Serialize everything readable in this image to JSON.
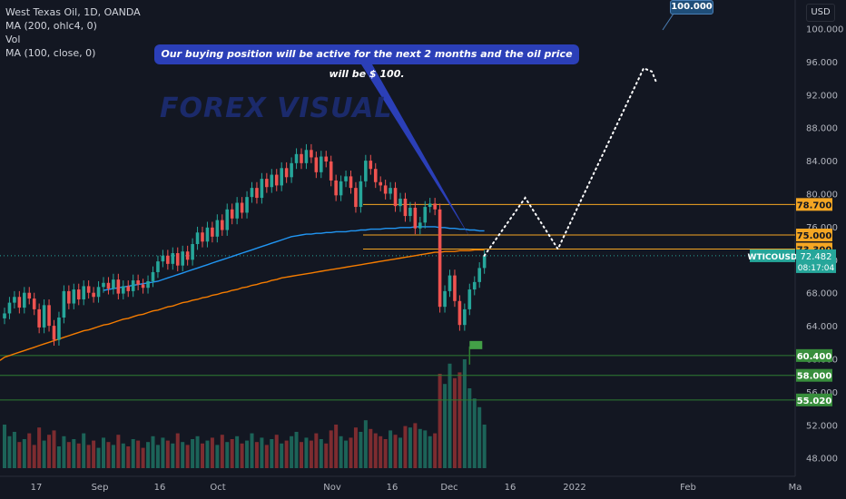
{
  "legend": {
    "title": "West Texas Oil, 1D, OANDA",
    "ma200": "MA (200, ohlc4, 0)",
    "vol": "Vol",
    "ma100": "MA (100, close, 0)"
  },
  "currency": "USD",
  "callout_text": "Our buying position will be active for the next 2 months and the oil price will be $ 100.",
  "target_label": "100.000",
  "watermark": "FOREX VISUAL",
  "colors": {
    "background": "#131722",
    "up": "#26a69a",
    "down": "#ef5350",
    "ma100": "#2196f3",
    "ma200": "#f57c00",
    "orange_level": "#f5a623",
    "green_level": "#2e7d32",
    "callout": "#2b3fb8"
  },
  "chart_data": {
    "type": "candlestick",
    "symbol": "WTICOUSD",
    "x_ticks": [
      "17",
      "Sep",
      "16",
      "Oct",
      "Nov",
      "16",
      "Dec",
      "16",
      "2022",
      "Feb",
      "Ma"
    ],
    "y_ticks": [
      "100.000",
      "96.000",
      "92.000",
      "88.000",
      "84.000",
      "80.000",
      "76.000",
      "72.000",
      "68.000",
      "64.000",
      "60.000",
      "56.000",
      "52.000",
      "48.000"
    ],
    "ylim": [
      44,
      102
    ],
    "current_price": "72.482",
    "countdown": "08:17:04",
    "levels": [
      {
        "label": "78.700",
        "value": 78.7,
        "color": "orange"
      },
      {
        "label": "75.000",
        "value": 75.0,
        "color": "orange"
      },
      {
        "label": "73.300",
        "value": 73.3,
        "color": "orange"
      },
      {
        "label": "60.400",
        "value": 60.4,
        "color": "green"
      },
      {
        "label": "58.000",
        "value": 58.0,
        "color": "green"
      },
      {
        "label": "55.020",
        "value": 55.02,
        "color": "green"
      }
    ],
    "closes": [
      65.5,
      66.8,
      67.5,
      66.2,
      68.0,
      67.3,
      66.0,
      63.8,
      66.5,
      64.0,
      62.3,
      65.0,
      68.2,
      66.7,
      68.4,
      67.2,
      68.8,
      68.0,
      67.5,
      68.7,
      69.2,
      68.5,
      69.6,
      67.9,
      68.8,
      68.2,
      69.5,
      69.0,
      68.6,
      69.4,
      70.5,
      71.8,
      72.5,
      71.5,
      72.8,
      71.3,
      73.0,
      72.0,
      73.9,
      75.3,
      74.2,
      75.9,
      74.8,
      76.8,
      75.6,
      78.1,
      77.0,
      78.9,
      77.7,
      79.6,
      80.7,
      79.5,
      81.8,
      80.8,
      82.3,
      81.0,
      83.1,
      82.0,
      83.7,
      84.8,
      83.7,
      85.3,
      84.4,
      82.6,
      84.5,
      83.9,
      81.6,
      79.8,
      81.5,
      82.1,
      80.7,
      78.4,
      81.5,
      84.0,
      83.0,
      81.4,
      81.0,
      80.0,
      80.7,
      78.5,
      79.4,
      77.3,
      78.3,
      75.8,
      76.5,
      78.4,
      78.8,
      78.1,
      66.3,
      68.2,
      70.1,
      67.0,
      64.1,
      66.0,
      68.4,
      69.3,
      71.0,
      72.48
    ],
    "ma200": [
      60.2,
      60.4,
      60.6,
      60.8,
      61.0,
      61.2,
      61.4,
      61.6,
      61.8,
      62.0,
      62.2,
      62.4,
      62.6,
      62.8,
      63.0,
      63.2,
      63.4,
      63.5,
      63.7,
      63.9,
      64.1,
      64.2,
      64.4,
      64.6,
      64.8,
      64.9,
      65.1,
      65.3,
      65.4,
      65.6,
      65.8,
      65.9,
      66.1,
      66.3,
      66.4,
      66.6,
      66.8,
      66.9,
      67.1,
      67.2,
      67.4,
      67.5,
      67.7,
      67.8,
      68.0,
      68.1,
      68.3,
      68.4,
      68.6,
      68.7,
      68.9,
      69.0,
      69.2,
      69.3,
      69.5,
      69.6,
      69.8,
      69.9,
      70.0,
      70.1,
      70.2,
      70.3,
      70.4,
      70.5,
      70.6,
      70.7,
      70.8,
      70.9,
      71.0,
      71.1,
      71.2,
      71.3,
      71.4,
      71.5,
      71.6,
      71.7,
      71.8,
      71.9,
      72.0,
      72.1,
      72.2,
      72.3,
      72.4,
      72.5,
      72.6,
      72.7,
      72.8,
      72.9,
      72.9,
      73.0,
      73.0,
      73.0,
      73.1,
      73.1,
      73.1,
      73.2,
      73.2,
      73.2
    ],
    "ma100": [
      null,
      null,
      null,
      null,
      null,
      null,
      null,
      null,
      null,
      null,
      null,
      null,
      null,
      null,
      null,
      null,
      null,
      null,
      null,
      null,
      68.3,
      68.4,
      68.5,
      68.6,
      68.7,
      68.8,
      68.9,
      69.0,
      69.1,
      69.2,
      69.3,
      69.4,
      69.6,
      69.8,
      70.0,
      70.2,
      70.4,
      70.6,
      70.8,
      71.0,
      71.2,
      71.4,
      71.6,
      71.8,
      72.0,
      72.2,
      72.4,
      72.6,
      72.8,
      73.0,
      73.2,
      73.4,
      73.6,
      73.8,
      74.0,
      74.2,
      74.4,
      74.6,
      74.8,
      74.9,
      75.0,
      75.1,
      75.1,
      75.2,
      75.2,
      75.3,
      75.3,
      75.4,
      75.4,
      75.4,
      75.5,
      75.5,
      75.6,
      75.6,
      75.7,
      75.7,
      75.7,
      75.8,
      75.8,
      75.8,
      75.9,
      75.9,
      75.9,
      76.0,
      76.0,
      76.0,
      76.0,
      76.0,
      75.9,
      75.9,
      75.8,
      75.8,
      75.7,
      75.7,
      75.6,
      75.6,
      75.5,
      75.5
    ],
    "volume": [
      0.3,
      0.22,
      0.25,
      0.18,
      0.2,
      0.24,
      0.16,
      0.28,
      0.19,
      0.23,
      0.26,
      0.15,
      0.22,
      0.18,
      0.2,
      0.17,
      0.24,
      0.16,
      0.19,
      0.14,
      0.21,
      0.18,
      0.16,
      0.23,
      0.17,
      0.15,
      0.2,
      0.19,
      0.14,
      0.18,
      0.22,
      0.16,
      0.21,
      0.19,
      0.17,
      0.24,
      0.18,
      0.16,
      0.2,
      0.22,
      0.17,
      0.19,
      0.21,
      0.16,
      0.23,
      0.18,
      0.2,
      0.22,
      0.17,
      0.19,
      0.24,
      0.18,
      0.21,
      0.16,
      0.2,
      0.23,
      0.17,
      0.19,
      0.22,
      0.25,
      0.18,
      0.21,
      0.19,
      0.24,
      0.2,
      0.17,
      0.26,
      0.3,
      0.22,
      0.19,
      0.21,
      0.28,
      0.25,
      0.33,
      0.27,
      0.24,
      0.22,
      0.2,
      0.26,
      0.23,
      0.21,
      0.29,
      0.28,
      0.31,
      0.27,
      0.26,
      0.22,
      0.24,
      0.65,
      0.58,
      0.72,
      0.62,
      0.66,
      0.75,
      0.55,
      0.48,
      0.42,
      0.3
    ],
    "projection": [
      [
        72.5,
        0
      ],
      [
        79.5,
        10
      ],
      [
        73.3,
        18
      ],
      [
        95.2,
        39
      ],
      [
        94.8,
        41
      ],
      [
        93.6,
        42
      ]
    ],
    "flag_value": 61.5
  }
}
